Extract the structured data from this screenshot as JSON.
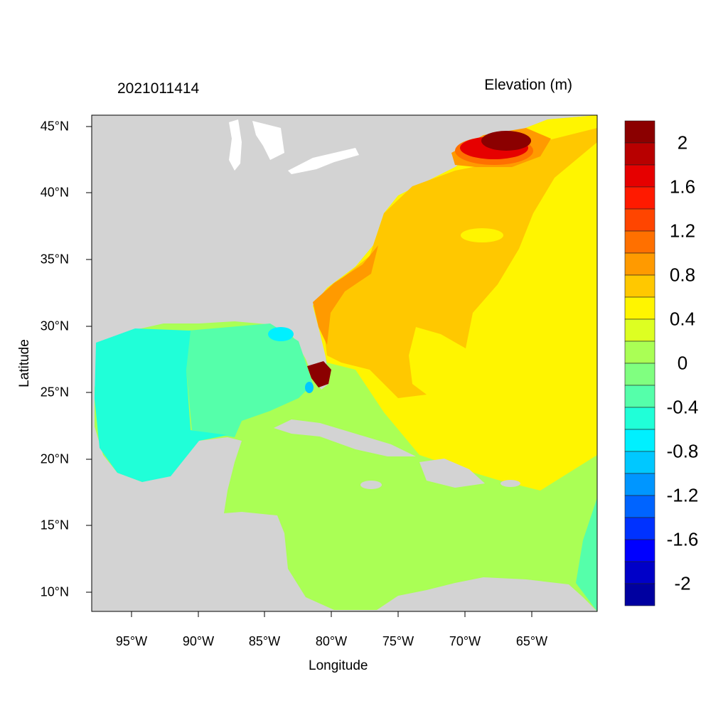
{
  "title_left": "2021011414",
  "title_right": "Elevation (m)",
  "x_axis_label": "Longitude",
  "y_axis_label": "Latitude",
  "lon_ticks": [
    "95°W",
    "90°W",
    "85°W",
    "80°W",
    "75°W",
    "70°W",
    "65°W"
  ],
  "lat_ticks": [
    "45°N",
    "40°N",
    "35°N",
    "30°N",
    "25°N",
    "20°N",
    "15°N",
    "10°N"
  ],
  "map_extent": {
    "lon": [
      -98,
      -60.2
    ],
    "lat": [
      8.55,
      45.85
    ]
  },
  "colorbar": {
    "labels": [
      "2",
      "1.6",
      "1.2",
      "0.8",
      "0.4",
      "0",
      "-0.4",
      "-0.8",
      "-1.2",
      "-1.6",
      "-2"
    ],
    "colors": [
      "#8B0000",
      "#B80000",
      "#E60000",
      "#FF1A00",
      "#FF4500",
      "#FF7000",
      "#FF9A00",
      "#FFC800",
      "#FFF500",
      "#DDFF22",
      "#AAFF55",
      "#80FF80",
      "#55FFAA",
      "#20FFD8",
      "#00F0FF",
      "#00C8FF",
      "#0096FF",
      "#0064FF",
      "#0032FF",
      "#0000FF",
      "#0000C8",
      "#0000A0"
    ]
  },
  "colors": {
    "land": "#D3D3D3",
    "lakes": "#FFFFFF"
  }
}
